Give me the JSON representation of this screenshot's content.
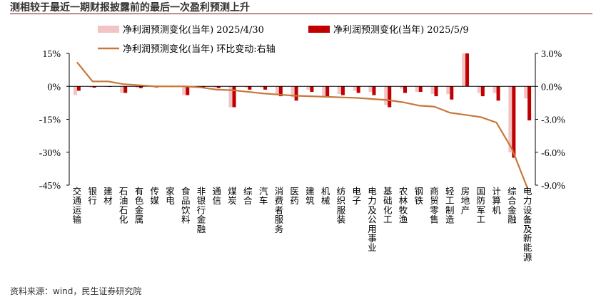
{
  "title": "测相较于最近一期财报披露前的最后一次盈利预测上升",
  "source": "资料来源：wind，民生证券研究院",
  "chart_data": {
    "type": "bar",
    "categories": [
      "交通运输",
      "银行",
      "建材",
      "石油石化",
      "有色金属",
      "传媒",
      "家电",
      "食品饮料",
      "非银行金融",
      "通信",
      "煤炭",
      "综合",
      "汽车",
      "消费者服务",
      "医药",
      "建筑",
      "机械",
      "纺织服装",
      "电子",
      "电力及公用事业",
      "基础化工",
      "农林牧渔",
      "钢铁",
      "商贸零售",
      "轻工制造",
      "房地产",
      "国防军工",
      "计算机",
      "综合金融",
      "电力设备及新能源"
    ],
    "series": [
      {
        "name": "净利润预测变化(当年) 2025/4/30",
        "axis": "left",
        "color": "#f2c4c4",
        "values": [
          -4.0,
          -0.5,
          -0.3,
          -3.0,
          -0.8,
          -0.4,
          -0.3,
          -4.0,
          -0.5,
          -0.6,
          -9.5,
          -0.5,
          -0.5,
          -3.5,
          -5.0,
          -1.5,
          -4.5,
          -3.5,
          -2.0,
          -2.5,
          -8.5,
          -1.0,
          -2.5,
          -3.5,
          -3.5,
          15.0,
          -3.0,
          -3.0,
          -30.0,
          -5.5
        ]
      },
      {
        "name": "净利润预测变化(当年) 2025/5/9",
        "axis": "left",
        "color": "#c00000",
        "values": [
          -2.0,
          -0.6,
          -0.2,
          -3.0,
          -0.8,
          -0.5,
          -0.3,
          -4.0,
          -0.8,
          -0.8,
          -9.5,
          -1.5,
          -1.5,
          -4.5,
          -6.5,
          -2.5,
          -4.5,
          -4.0,
          -3.0,
          -4.0,
          -9.5,
          -3.0,
          -2.5,
          -4.5,
          -6.0,
          15.0,
          -4.5,
          -6.5,
          -32.5,
          -15.5
        ]
      },
      {
        "name": "净利润预测变化(当年) 环比变动:右轴",
        "axis": "right",
        "color": "#c8773a",
        "values": [
          2.2,
          0.45,
          0.45,
          0.2,
          0.1,
          0.0,
          0.0,
          0.0,
          -0.1,
          -0.3,
          -0.35,
          -0.5,
          -0.65,
          -0.75,
          -0.85,
          -0.9,
          -0.95,
          -1.0,
          -1.05,
          -1.15,
          -1.25,
          -1.45,
          -1.75,
          -1.85,
          -2.4,
          -2.6,
          -2.8,
          -3.3,
          -5.7,
          -9.3
        ]
      }
    ],
    "y_left": {
      "ticks": [
        15,
        0,
        -15,
        -30,
        -45
      ],
      "tick_labels": [
        "15%",
        "0%",
        "-15%",
        "-30%",
        "-45%"
      ],
      "ylim": [
        -45,
        15
      ]
    },
    "y_right": {
      "ticks": [
        3,
        0,
        -3,
        -6,
        -9
      ],
      "tick_labels": [
        "3.0%",
        "0.0%",
        "-3.0%",
        "-6.0%",
        "-9.0%"
      ],
      "ylim": [
        -9,
        3
      ]
    },
    "legend_position": "top",
    "grid": false
  }
}
